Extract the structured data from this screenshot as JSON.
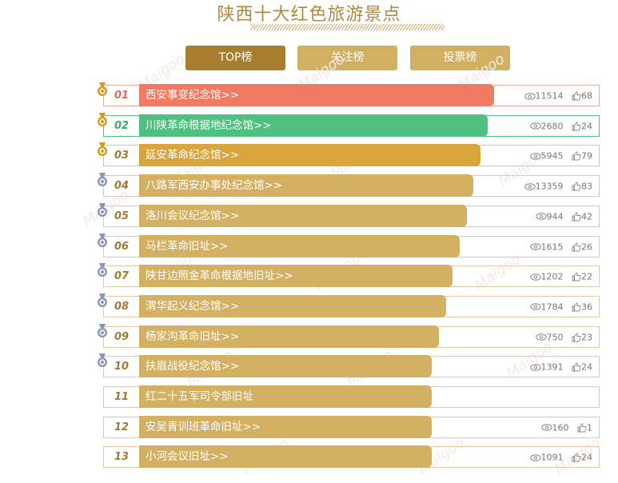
{
  "page": {
    "title": "陕西十大红色旅游景点"
  },
  "tabs": [
    {
      "label": "TOP榜",
      "active": true
    },
    {
      "label": "关注榜",
      "active": false
    },
    {
      "label": "投票榜",
      "active": false
    }
  ],
  "colors": {
    "rank1_bar": "#f07b62",
    "rank2_bar": "#4fc07f",
    "rank3_bar": "#d8a43c",
    "default_bar": "#d4b062",
    "gold_medal": "#d79a1d",
    "silver_medal": "#8a96b6"
  },
  "watermark": "Maigoo",
  "rows": [
    {
      "rank": "01",
      "name": "西安事变纪念馆>>",
      "views": "11514",
      "likes": "68",
      "medal": "gold",
      "level": 0.77
    },
    {
      "rank": "02",
      "name": "川陕革命根据地纪念馆>>",
      "views": "2680",
      "likes": "24",
      "medal": "gold",
      "level": 0.755
    },
    {
      "rank": "03",
      "name": "延安革命纪念馆>>",
      "views": "5945",
      "likes": "79",
      "medal": "gold",
      "level": 0.74
    },
    {
      "rank": "04",
      "name": "八路军西安办事处纪念馆>>",
      "views": "13359",
      "likes": "83",
      "medal": "silver",
      "level": 0.725
    },
    {
      "rank": "05",
      "name": "洛川会议纪念馆>>",
      "views": "944",
      "likes": "42",
      "medal": "silver",
      "level": 0.71
    },
    {
      "rank": "06",
      "name": "马栏革命旧址>>",
      "views": "1615",
      "likes": "26",
      "medal": "silver",
      "level": 0.695
    },
    {
      "rank": "07",
      "name": "陕甘边照金革命根据地旧址>>",
      "views": "1202",
      "likes": "22",
      "medal": "silver",
      "level": 0.68
    },
    {
      "rank": "08",
      "name": "渭华起义纪念馆>>",
      "views": "1784",
      "likes": "36",
      "medal": "silver",
      "level": 0.665
    },
    {
      "rank": "09",
      "name": "杨家沟革命旧址>>",
      "views": "750",
      "likes": "23",
      "medal": "silver",
      "level": 0.65
    },
    {
      "rank": "10",
      "name": "扶眉战役纪念馆>>",
      "views": "1391",
      "likes": "24",
      "medal": "silver",
      "level": 0.635
    },
    {
      "rank": "11",
      "name": "红二十五军司令部旧址",
      "views": "",
      "likes": "",
      "medal": "",
      "level": 0.635
    },
    {
      "rank": "12",
      "name": "安吴青训班革命旧址>>",
      "views": "160",
      "likes": "1",
      "medal": "",
      "level": 0.635
    },
    {
      "rank": "13",
      "name": "小河会议旧址>>",
      "views": "1091",
      "likes": "24",
      "medal": "",
      "level": 0.635
    }
  ]
}
